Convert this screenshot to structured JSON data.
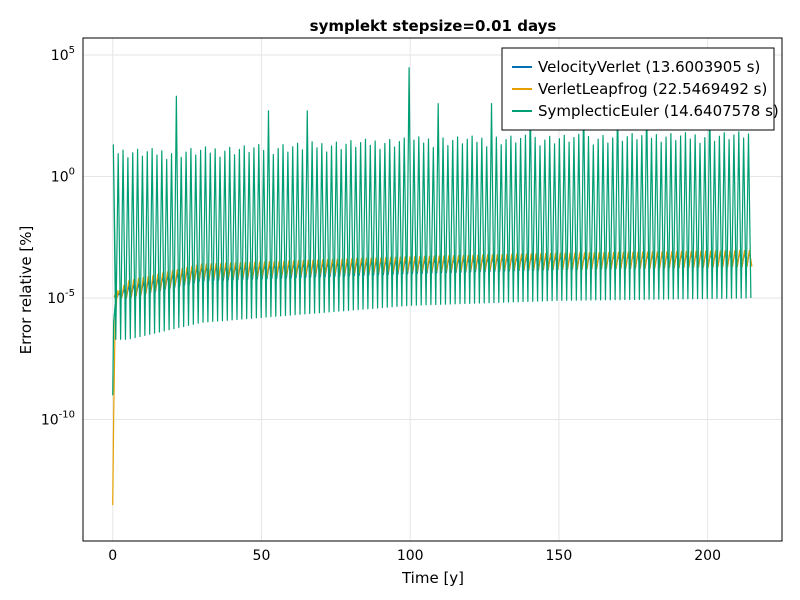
{
  "chart_data": {
    "type": "line",
    "title": "symplekt stepsize=0.01 days",
    "xlabel": "Time [y]",
    "ylabel": "Error relative [%]",
    "x_scale": "linear",
    "y_scale": "log10",
    "xlim": [
      -10,
      225
    ],
    "ylim": [
      1e-15,
      500000.0
    ],
    "x_ticks": [
      0,
      50,
      100,
      150,
      200
    ],
    "y_ticks": [
      {
        "exp": "-10",
        "value": 1e-10
      },
      {
        "exp": "-5",
        "value": 1e-05
      },
      {
        "exp": "0",
        "value": 1
      },
      {
        "exp": "5",
        "value": 100000.0
      }
    ],
    "grid": true,
    "legend_position": "top-right",
    "x_data_max": 215,
    "spike_period_years": 1.63,
    "series": [
      {
        "name": "VelocityVerlet (13.6003905 s)",
        "color": "#0072b2",
        "envelope_upper": [
          [
            0,
            1e-05
          ],
          [
            5,
            3e-05
          ],
          [
            30,
            0.0002
          ],
          [
            100,
            0.0004
          ],
          [
            150,
            0.0006
          ],
          [
            215,
            0.0008
          ]
        ],
        "envelope_lower": [
          [
            0,
            1e-05
          ],
          [
            5,
            1e-05
          ],
          [
            30,
            5e-05
          ],
          [
            100,
            0.0001
          ],
          [
            150,
            0.00015
          ],
          [
            215,
            0.0002
          ]
        ]
      },
      {
        "name": "VerletLeapfrog (22.5469492 s)",
        "color": "#e69f00",
        "initial_trace": [
          [
            0,
            3e-14
          ],
          [
            0.3,
            1e-10
          ],
          [
            0.8,
            1e-06
          ],
          [
            1.5,
            2e-05
          ]
        ],
        "envelope_upper": [
          [
            0,
            1e-05
          ],
          [
            5,
            5e-05
          ],
          [
            30,
            0.00025
          ],
          [
            100,
            0.0005
          ],
          [
            150,
            0.0007
          ],
          [
            215,
            0.0009
          ]
        ],
        "envelope_lower": [
          [
            0,
            1e-05
          ],
          [
            5,
            1e-05
          ],
          [
            30,
            6e-05
          ],
          [
            100,
            0.00012
          ],
          [
            150,
            0.00016
          ],
          [
            215,
            0.0002
          ]
        ]
      },
      {
        "name": "SymplecticEuler (14.6407578 s)",
        "color": "#009e73",
        "initial_trace": [
          [
            0,
            1e-09
          ],
          [
            0.3,
            1e-06
          ],
          [
            1,
            1e-05
          ]
        ],
        "spike_upper": [
          [
            0,
            10
          ],
          [
            20,
            10
          ],
          [
            100,
            30
          ],
          [
            215,
            50
          ]
        ],
        "spike_lower": [
          [
            0,
            2e-07
          ],
          [
            5,
            2e-07
          ],
          [
            30,
            1e-06
          ],
          [
            100,
            5e-06
          ],
          [
            150,
            8e-06
          ],
          [
            215,
            1e-05
          ]
        ],
        "spike_outliers": [
          {
            "x": 0.2,
            "value": 20
          },
          {
            "x": 22,
            "value": 2000
          },
          {
            "x": 53,
            "value": 500
          },
          {
            "x": 66,
            "value": 500
          },
          {
            "x": 100,
            "value": 30000
          },
          {
            "x": 110,
            "value": 1000
          },
          {
            "x": 127,
            "value": 1000
          },
          {
            "x": 140,
            "value": 1000
          },
          {
            "x": 158,
            "value": 1000
          },
          {
            "x": 170,
            "value": 1000
          },
          {
            "x": 180,
            "value": 1000
          },
          {
            "x": 200,
            "value": 1000
          }
        ]
      }
    ]
  }
}
